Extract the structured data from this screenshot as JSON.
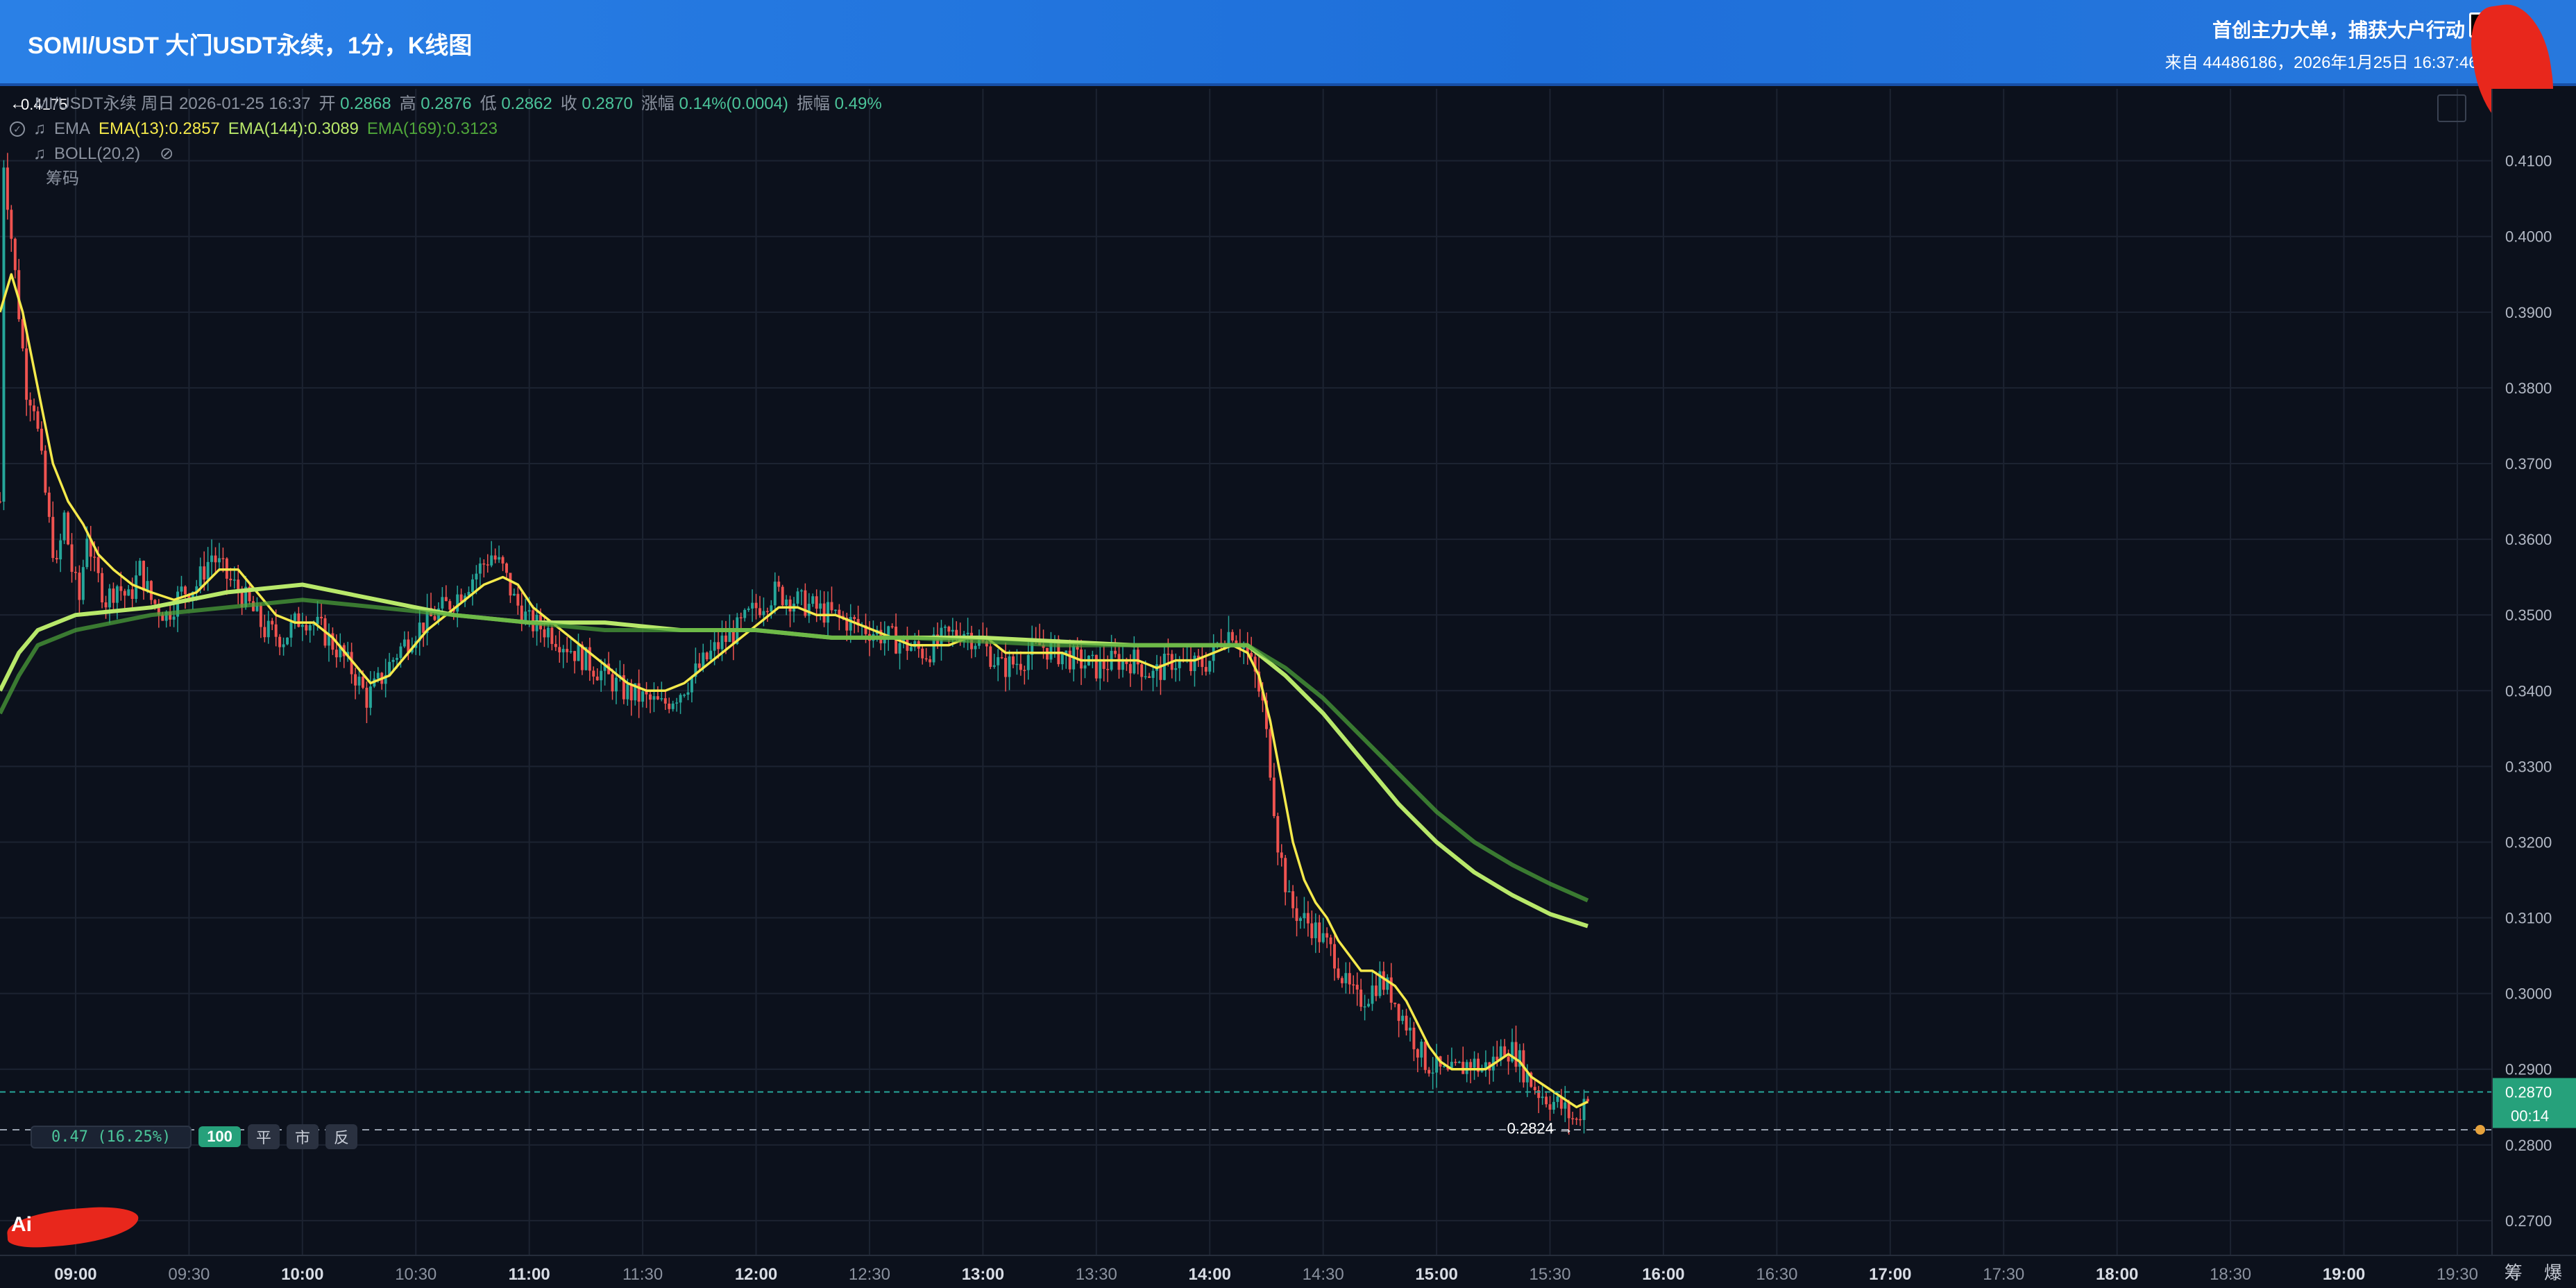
{
  "header": {
    "title": "SOMI/USDT 大门USDT永续，1分，K线图",
    "promo": "首创主力大单，捕获大户行动",
    "source": "来自 44486186，2026年1月25日 16:37:46 SO"
  },
  "legend": {
    "back_arrow": "←",
    "symbol_line": "MI/USDT永续 周日 2026-01-25 16:37",
    "open_label": "开",
    "open_value": "0.2868",
    "high_label": "高",
    "high_value": "0.2876",
    "low_label": "低",
    "low_value": "0.2862",
    "close_label": "收",
    "close_value": "0.2870",
    "change_label": "涨幅",
    "change_value": "0.14%(0.0004)",
    "amp_label": "振幅",
    "amp_value": "0.49%",
    "ema_label": "EMA",
    "ema13": "EMA(13):0.2857",
    "ema144": "EMA(144):0.3089",
    "ema169": "EMA(169):0.3123",
    "boll": "BOLL(20,2)",
    "chips": "筹码"
  },
  "order_bar": {
    "position": "0.47 (16.25%)",
    "qty": "100",
    "close_label": "平",
    "market_label": "市",
    "reverse_label": "反"
  },
  "logo_text": "Ai",
  "corner_labels": "筹 爆",
  "colors": {
    "background": "#0c111c",
    "up": "#26a69a",
    "down": "#ef5350",
    "ema13": "#f4e94b",
    "ema144": "#b8e86a",
    "ema169": "#4fa63a",
    "header_blue": "#2a80e6"
  },
  "chart_data": {
    "type": "candlestick",
    "symbol": "SOMI/USDT",
    "interval": "1分",
    "ylim": [
      0.2655,
      0.4195
    ],
    "y_ticks": [
      "0.4100",
      "0.4000",
      "0.3900",
      "0.3800",
      "0.3700",
      "0.3600",
      "0.3500",
      "0.3400",
      "0.3300",
      "0.3200",
      "0.3100",
      "0.3000",
      "0.2900",
      "0.2800",
      "0.2700"
    ],
    "x_ticks": [
      "09:00",
      "09:30",
      "10:00",
      "10:30",
      "11:00",
      "11:30",
      "12:00",
      "12:30",
      "13:00",
      "13:30",
      "14:00",
      "14:30",
      "15:00",
      "15:30",
      "16:00",
      "16:30",
      "17:00",
      "17:30",
      "18:00",
      "18:30",
      "19:00",
      "19:30"
    ],
    "x_range_minutes": [
      520,
      1179
    ],
    "last_price": "0.2870",
    "countdown": "00:14",
    "high_marker": "0.4175",
    "low_marker": "0.2824",
    "entry_line": 0.282,
    "price_path": [
      [
        520,
        0.365
      ],
      [
        521,
        0.41
      ],
      [
        523,
        0.4
      ],
      [
        525,
        0.39
      ],
      [
        527,
        0.38
      ],
      [
        529,
        0.378
      ],
      [
        531,
        0.37
      ],
      [
        533,
        0.362
      ],
      [
        535,
        0.356
      ],
      [
        537,
        0.363
      ],
      [
        539,
        0.356
      ],
      [
        541,
        0.352
      ],
      [
        543,
        0.361
      ],
      [
        545,
        0.356
      ],
      [
        548,
        0.352
      ],
      [
        551,
        0.354
      ],
      [
        554,
        0.352
      ],
      [
        557,
        0.356
      ],
      [
        560,
        0.352
      ],
      [
        564,
        0.35
      ],
      [
        568,
        0.353
      ],
      [
        572,
        0.354
      ],
      [
        576,
        0.358
      ],
      [
        580,
        0.355
      ],
      [
        585,
        0.352
      ],
      [
        590,
        0.348
      ],
      [
        595,
        0.347
      ],
      [
        600,
        0.35
      ],
      [
        605,
        0.348
      ],
      [
        610,
        0.345
      ],
      [
        614,
        0.342
      ],
      [
        617,
        0.339
      ],
      [
        620,
        0.341
      ],
      [
        625,
        0.345
      ],
      [
        630,
        0.348
      ],
      [
        635,
        0.35
      ],
      [
        640,
        0.352
      ],
      [
        645,
        0.355
      ],
      [
        650,
        0.358
      ],
      [
        653,
        0.356
      ],
      [
        656,
        0.352
      ],
      [
        660,
        0.349
      ],
      [
        665,
        0.348
      ],
      [
        670,
        0.346
      ],
      [
        675,
        0.344
      ],
      [
        680,
        0.342
      ],
      [
        685,
        0.34
      ],
      [
        690,
        0.339
      ],
      [
        695,
        0.338
      ],
      [
        700,
        0.34
      ],
      [
        705,
        0.343
      ],
      [
        710,
        0.346
      ],
      [
        715,
        0.348
      ],
      [
        720,
        0.351
      ],
      [
        725,
        0.353
      ],
      [
        730,
        0.352
      ],
      [
        735,
        0.351
      ],
      [
        740,
        0.35
      ],
      [
        745,
        0.349
      ],
      [
        750,
        0.348
      ],
      [
        755,
        0.347
      ],
      [
        760,
        0.346
      ],
      [
        765,
        0.345
      ],
      [
        770,
        0.347
      ],
      [
        775,
        0.348
      ],
      [
        780,
        0.346
      ],
      [
        785,
        0.343
      ],
      [
        790,
        0.344
      ],
      [
        795,
        0.346
      ],
      [
        800,
        0.345
      ],
      [
        805,
        0.344
      ],
      [
        810,
        0.343
      ],
      [
        815,
        0.344
      ],
      [
        820,
        0.344
      ],
      [
        825,
        0.342
      ],
      [
        830,
        0.344
      ],
      [
        835,
        0.343
      ],
      [
        840,
        0.344
      ],
      [
        843,
        0.347
      ],
      [
        846,
        0.348
      ],
      [
        849,
        0.346
      ],
      [
        852,
        0.342
      ],
      [
        854,
        0.338
      ],
      [
        856,
        0.33
      ],
      [
        858,
        0.32
      ],
      [
        861,
        0.312
      ],
      [
        864,
        0.31
      ],
      [
        867,
        0.309
      ],
      [
        870,
        0.307
      ],
      [
        873,
        0.305
      ],
      [
        876,
        0.301
      ],
      [
        879,
        0.299
      ],
      [
        882,
        0.3
      ],
      [
        885,
        0.302
      ],
      [
        888,
        0.3
      ],
      [
        891,
        0.297
      ],
      [
        894,
        0.294
      ],
      [
        897,
        0.291
      ],
      [
        900,
        0.29
      ],
      [
        903,
        0.289
      ],
      [
        906,
        0.29
      ],
      [
        909,
        0.291
      ],
      [
        912,
        0.29
      ],
      [
        915,
        0.291
      ],
      [
        918,
        0.293
      ],
      [
        921,
        0.292
      ],
      [
        924,
        0.289
      ],
      [
        927,
        0.287
      ],
      [
        930,
        0.286
      ],
      [
        933,
        0.285
      ],
      [
        935,
        0.284
      ],
      [
        937,
        0.283
      ],
      [
        939,
        0.286
      ],
      [
        940,
        0.287
      ]
    ],
    "series": [
      {
        "name": "EMA(13)",
        "color": "#f4e94b",
        "values": [
          [
            520,
            0.39
          ],
          [
            523,
            0.395
          ],
          [
            526,
            0.39
          ],
          [
            530,
            0.38
          ],
          [
            534,
            0.37
          ],
          [
            538,
            0.365
          ],
          [
            542,
            0.362
          ],
          [
            546,
            0.358
          ],
          [
            550,
            0.356
          ],
          [
            555,
            0.354
          ],
          [
            560,
            0.353
          ],
          [
            566,
            0.352
          ],
          [
            572,
            0.353
          ],
          [
            578,
            0.356
          ],
          [
            583,
            0.356
          ],
          [
            588,
            0.353
          ],
          [
            593,
            0.35
          ],
          [
            598,
            0.349
          ],
          [
            603,
            0.349
          ],
          [
            608,
            0.347
          ],
          [
            613,
            0.344
          ],
          [
            618,
            0.341
          ],
          [
            623,
            0.342
          ],
          [
            628,
            0.345
          ],
          [
            633,
            0.348
          ],
          [
            638,
            0.35
          ],
          [
            643,
            0.352
          ],
          [
            648,
            0.354
          ],
          [
            653,
            0.355
          ],
          [
            657,
            0.354
          ],
          [
            661,
            0.351
          ],
          [
            666,
            0.349
          ],
          [
            671,
            0.347
          ],
          [
            676,
            0.345
          ],
          [
            681,
            0.343
          ],
          [
            686,
            0.341
          ],
          [
            691,
            0.34
          ],
          [
            696,
            0.34
          ],
          [
            701,
            0.341
          ],
          [
            706,
            0.343
          ],
          [
            711,
            0.345
          ],
          [
            716,
            0.347
          ],
          [
            721,
            0.349
          ],
          [
            726,
            0.351
          ],
          [
            731,
            0.351
          ],
          [
            736,
            0.35
          ],
          [
            741,
            0.35
          ],
          [
            746,
            0.349
          ],
          [
            751,
            0.348
          ],
          [
            756,
            0.347
          ],
          [
            761,
            0.346
          ],
          [
            766,
            0.346
          ],
          [
            771,
            0.346
          ],
          [
            776,
            0.347
          ],
          [
            781,
            0.347
          ],
          [
            786,
            0.345
          ],
          [
            791,
            0.345
          ],
          [
            796,
            0.345
          ],
          [
            801,
            0.345
          ],
          [
            806,
            0.344
          ],
          [
            811,
            0.344
          ],
          [
            816,
            0.344
          ],
          [
            821,
            0.344
          ],
          [
            826,
            0.343
          ],
          [
            831,
            0.344
          ],
          [
            836,
            0.344
          ],
          [
            841,
            0.345
          ],
          [
            846,
            0.346
          ],
          [
            850,
            0.345
          ],
          [
            853,
            0.342
          ],
          [
            856,
            0.336
          ],
          [
            859,
            0.328
          ],
          [
            862,
            0.32
          ],
          [
            865,
            0.315
          ],
          [
            868,
            0.312
          ],
          [
            871,
            0.31
          ],
          [
            874,
            0.307
          ],
          [
            877,
            0.305
          ],
          [
            880,
            0.303
          ],
          [
            883,
            0.303
          ],
          [
            886,
            0.302
          ],
          [
            889,
            0.301
          ],
          [
            892,
            0.299
          ],
          [
            895,
            0.296
          ],
          [
            898,
            0.293
          ],
          [
            901,
            0.291
          ],
          [
            904,
            0.29
          ],
          [
            907,
            0.29
          ],
          [
            910,
            0.29
          ],
          [
            913,
            0.29
          ],
          [
            916,
            0.291
          ],
          [
            919,
            0.292
          ],
          [
            922,
            0.291
          ],
          [
            925,
            0.289
          ],
          [
            928,
            0.288
          ],
          [
            931,
            0.287
          ],
          [
            934,
            0.286
          ],
          [
            937,
            0.285
          ],
          [
            940,
            0.2857
          ]
        ]
      },
      {
        "name": "EMA(144)",
        "color": "#b8e86a",
        "values": [
          [
            520,
            0.34
          ],
          [
            525,
            0.345
          ],
          [
            530,
            0.348
          ],
          [
            540,
            0.35
          ],
          [
            560,
            0.351
          ],
          [
            580,
            0.353
          ],
          [
            600,
            0.354
          ],
          [
            620,
            0.352
          ],
          [
            640,
            0.35
          ],
          [
            660,
            0.349
          ],
          [
            680,
            0.349
          ],
          [
            700,
            0.348
          ],
          [
            720,
            0.348
          ],
          [
            740,
            0.347
          ],
          [
            760,
            0.347
          ],
          [
            780,
            0.347
          ],
          [
            800,
            0.3465
          ],
          [
            820,
            0.346
          ],
          [
            840,
            0.346
          ],
          [
            850,
            0.346
          ],
          [
            860,
            0.342
          ],
          [
            870,
            0.337
          ],
          [
            880,
            0.331
          ],
          [
            890,
            0.325
          ],
          [
            900,
            0.32
          ],
          [
            910,
            0.316
          ],
          [
            920,
            0.313
          ],
          [
            930,
            0.3105
          ],
          [
            940,
            0.3089
          ]
        ]
      },
      {
        "name": "EMA(169)",
        "color": "#4fa63a",
        "values": [
          [
            520,
            0.337
          ],
          [
            525,
            0.342
          ],
          [
            530,
            0.346
          ],
          [
            540,
            0.348
          ],
          [
            560,
            0.35
          ],
          [
            580,
            0.351
          ],
          [
            600,
            0.352
          ],
          [
            620,
            0.351
          ],
          [
            640,
            0.35
          ],
          [
            660,
            0.349
          ],
          [
            680,
            0.348
          ],
          [
            700,
            0.348
          ],
          [
            720,
            0.348
          ],
          [
            740,
            0.347
          ],
          [
            760,
            0.347
          ],
          [
            780,
            0.3465
          ],
          [
            800,
            0.346
          ],
          [
            820,
            0.346
          ],
          [
            840,
            0.346
          ],
          [
            850,
            0.346
          ],
          [
            860,
            0.343
          ],
          [
            870,
            0.339
          ],
          [
            880,
            0.334
          ],
          [
            890,
            0.329
          ],
          [
            900,
            0.324
          ],
          [
            910,
            0.32
          ],
          [
            920,
            0.317
          ],
          [
            930,
            0.3145
          ],
          [
            940,
            0.3123
          ]
        ]
      }
    ]
  }
}
